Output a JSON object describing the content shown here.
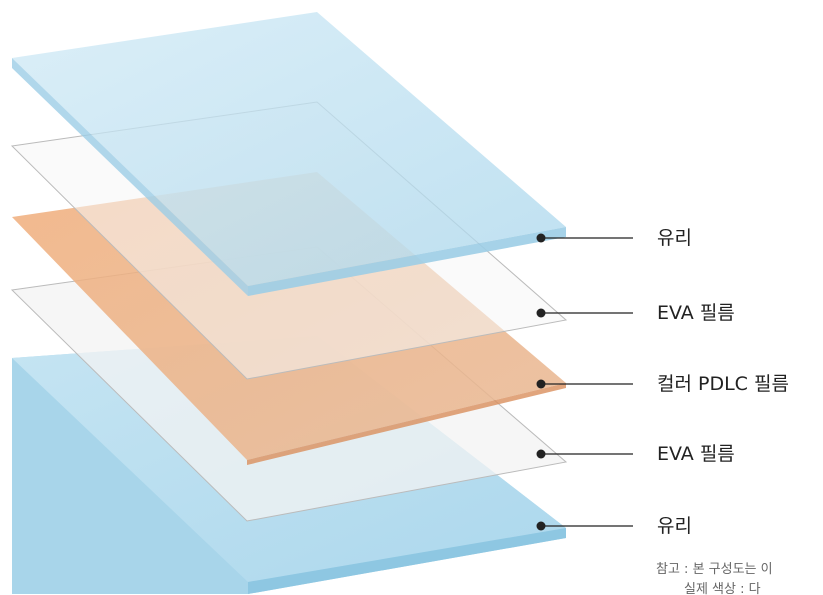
{
  "layers": [
    {
      "label": "유리",
      "color": "#bfe2f2"
    },
    {
      "label": "EVA 필름",
      "color": "#f4f4f4"
    },
    {
      "label": "컬러 PDLC 필름",
      "color": "#efaa78"
    },
    {
      "label": "EVA 필름",
      "color": "#f4f4f4"
    },
    {
      "label": "유리",
      "color": "#bfe2f2"
    }
  ],
  "note": {
    "line1": "참고 : 본 구성도는 이",
    "line2": "실제 색상 : 다"
  }
}
